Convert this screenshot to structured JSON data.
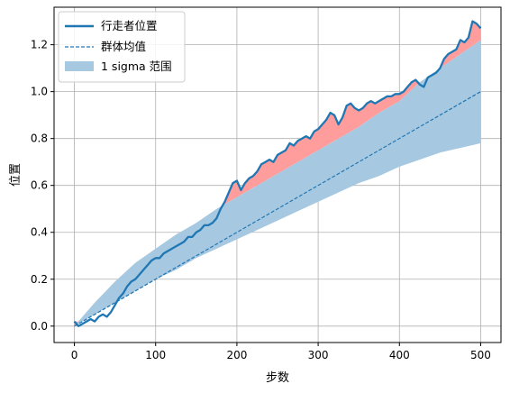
{
  "chart_data": {
    "type": "line",
    "xlabel": "步数",
    "ylabel": "位置",
    "xlim": [
      -25,
      525
    ],
    "ylim": [
      -0.07,
      1.36
    ],
    "xticks": [
      0,
      100,
      200,
      300,
      400,
      500
    ],
    "yticks": [
      0.0,
      0.2,
      0.4,
      0.6,
      0.8,
      1.0,
      1.2
    ],
    "xtick_labels": [
      "0",
      "100",
      "200",
      "300",
      "400",
      "500"
    ],
    "ytick_labels": [
      "0.0",
      "0.2",
      "0.4",
      "0.6",
      "0.8",
      "1.0",
      "1.2"
    ],
    "grid": true,
    "legend_placement": "top-left",
    "colors": {
      "walker": "#1f77b4",
      "mean": "#1f77b4",
      "band": "#a6c8e0",
      "excess": "#ff9c9c"
    },
    "series": [
      {
        "name": "行走者位置",
        "style": "solid",
        "x": [
          0,
          5,
          10,
          15,
          20,
          25,
          30,
          35,
          40,
          45,
          50,
          55,
          60,
          65,
          70,
          75,
          80,
          85,
          90,
          95,
          100,
          105,
          110,
          115,
          120,
          125,
          130,
          135,
          140,
          145,
          150,
          155,
          160,
          165,
          170,
          175,
          180,
          185,
          190,
          195,
          200,
          205,
          210,
          215,
          220,
          225,
          230,
          235,
          240,
          245,
          250,
          255,
          260,
          265,
          270,
          275,
          280,
          285,
          290,
          295,
          300,
          305,
          310,
          315,
          320,
          325,
          330,
          335,
          340,
          345,
          350,
          355,
          360,
          365,
          370,
          375,
          380,
          385,
          390,
          395,
          400,
          405,
          410,
          415,
          420,
          425,
          430,
          435,
          440,
          445,
          450,
          455,
          460,
          465,
          470,
          475,
          480,
          485,
          490,
          495,
          500
        ],
        "y": [
          0.02,
          0.0,
          0.01,
          0.02,
          0.03,
          0.02,
          0.04,
          0.05,
          0.04,
          0.06,
          0.09,
          0.12,
          0.14,
          0.17,
          0.19,
          0.2,
          0.22,
          0.24,
          0.26,
          0.28,
          0.29,
          0.29,
          0.31,
          0.32,
          0.33,
          0.34,
          0.35,
          0.36,
          0.38,
          0.38,
          0.4,
          0.41,
          0.43,
          0.43,
          0.44,
          0.46,
          0.5,
          0.53,
          0.57,
          0.61,
          0.62,
          0.58,
          0.61,
          0.63,
          0.64,
          0.66,
          0.69,
          0.7,
          0.71,
          0.7,
          0.73,
          0.74,
          0.75,
          0.78,
          0.77,
          0.79,
          0.8,
          0.81,
          0.8,
          0.83,
          0.84,
          0.86,
          0.88,
          0.91,
          0.9,
          0.86,
          0.89,
          0.94,
          0.95,
          0.93,
          0.92,
          0.93,
          0.95,
          0.96,
          0.95,
          0.96,
          0.97,
          0.98,
          0.98,
          0.99,
          0.99,
          1.0,
          1.02,
          1.04,
          1.05,
          1.03,
          1.02,
          1.06,
          1.07,
          1.08,
          1.1,
          1.14,
          1.16,
          1.17,
          1.18,
          1.22,
          1.21,
          1.23,
          1.3,
          1.29,
          1.27
        ]
      },
      {
        "name": "群体均值",
        "style": "dashed",
        "x": [
          0,
          500
        ],
        "y": [
          0.0,
          1.0
        ]
      }
    ],
    "band": {
      "name": "1 sigma 范围",
      "x": [
        0,
        25,
        50,
        75,
        100,
        125,
        150,
        175,
        200,
        225,
        250,
        275,
        300,
        325,
        350,
        375,
        400,
        425,
        450,
        475,
        500
      ],
      "lower": [
        0.0,
        0.05,
        0.1,
        0.15,
        0.2,
        0.24,
        0.29,
        0.33,
        0.37,
        0.41,
        0.45,
        0.49,
        0.53,
        0.57,
        0.61,
        0.64,
        0.68,
        0.71,
        0.74,
        0.76,
        0.78
      ],
      "upper": [
        0.0,
        0.1,
        0.19,
        0.27,
        0.33,
        0.39,
        0.44,
        0.5,
        0.55,
        0.6,
        0.65,
        0.7,
        0.75,
        0.8,
        0.85,
        0.91,
        0.96,
        1.04,
        1.1,
        1.16,
        1.22
      ]
    }
  }
}
